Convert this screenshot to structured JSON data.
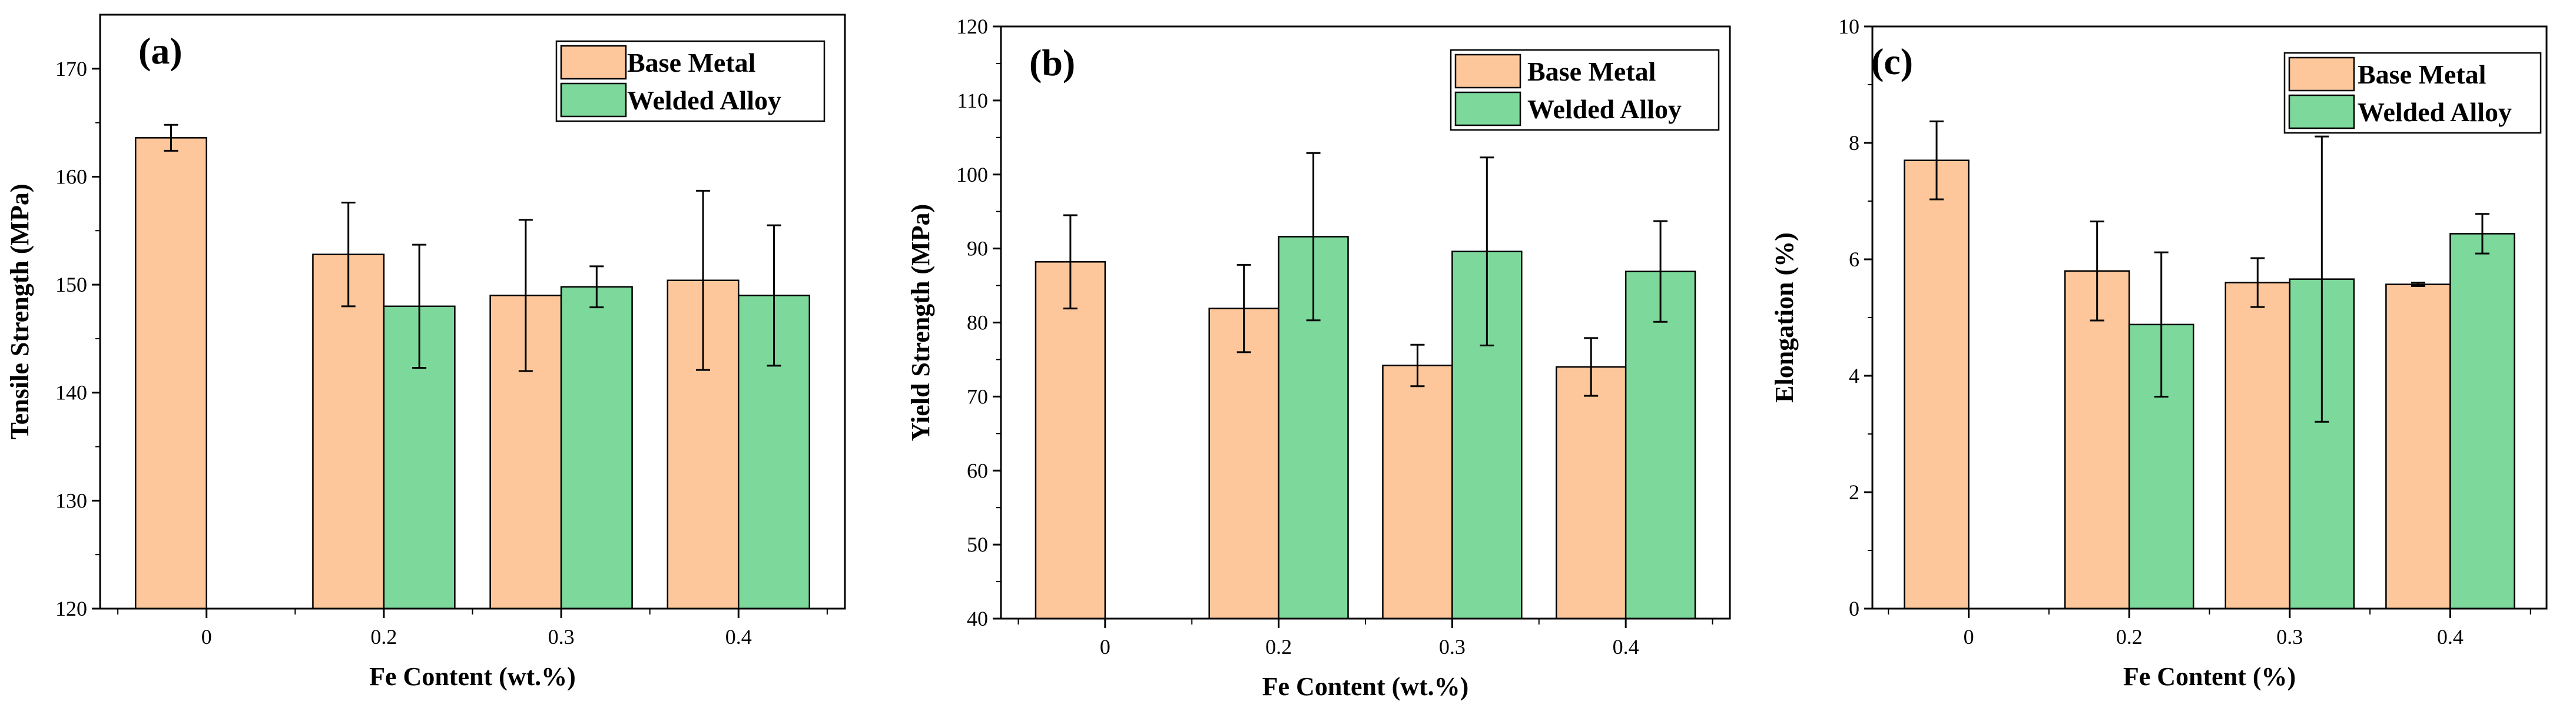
{
  "colors": {
    "base_metal": "#FDC79B",
    "welded_alloy": "#7DD99B",
    "axis": "#000000"
  },
  "legend": {
    "base_metal": "Base Metal",
    "welded_alloy": "Welded Alloy"
  },
  "chart_data": [
    {
      "type": "bar",
      "panel": "(a)",
      "xlabel": "Fe Content (wt.%)",
      "ylabel": "Tensile Strength (MPa)",
      "categories": [
        "0",
        "0.2",
        "0.3",
        "0.4"
      ],
      "ylim": [
        120,
        175
      ],
      "yticks": [
        120,
        130,
        140,
        150,
        160,
        170
      ],
      "legend_position": "top-right",
      "series": [
        {
          "name": "Base Metal",
          "key": "base_metal",
          "values": [
            163.6,
            152.8,
            149.0,
            150.4
          ],
          "errors": [
            1.2,
            4.8,
            7.0,
            8.3
          ]
        },
        {
          "name": "Welded Alloy",
          "key": "welded_alloy",
          "values": [
            null,
            148.0,
            149.8,
            149.0
          ],
          "errors": [
            null,
            5.7,
            1.9,
            6.5
          ]
        }
      ]
    },
    {
      "type": "bar",
      "panel": "(b)",
      "xlabel": "Fe Content (wt.%)",
      "ylabel": "Yield Strength (MPa)",
      "categories": [
        "0",
        "0.2",
        "0.3",
        "0.4"
      ],
      "ylim": [
        40,
        120
      ],
      "yticks": [
        40,
        50,
        60,
        70,
        80,
        90,
        100,
        110,
        120
      ],
      "legend_position": "top-right",
      "series": [
        {
          "name": "Base Metal",
          "key": "base_metal",
          "values": [
            88.2,
            81.9,
            74.2,
            74.0
          ],
          "errors": [
            6.3,
            5.9,
            2.8,
            3.9
          ]
        },
        {
          "name": "Welded Alloy",
          "key": "welded_alloy",
          "values": [
            null,
            91.6,
            89.6,
            86.9
          ],
          "errors": [
            null,
            11.3,
            12.7,
            6.8
          ]
        }
      ]
    },
    {
      "type": "bar",
      "panel": "(c)",
      "xlabel": "Fe Content (%)",
      "ylabel": "Elongation (%)",
      "categories": [
        "0",
        "0.2",
        "0.3",
        "0.4"
      ],
      "ylim": [
        0,
        10
      ],
      "yticks": [
        0,
        2,
        4,
        6,
        8,
        10
      ],
      "legend_position": "top-right",
      "series": [
        {
          "name": "Base Metal",
          "key": "base_metal",
          "values": [
            7.7,
            5.8,
            5.6,
            5.57
          ],
          "errors": [
            0.67,
            0.85,
            0.42,
            0.03
          ]
        },
        {
          "name": "Welded Alloy",
          "key": "welded_alloy",
          "values": [
            null,
            4.88,
            5.66,
            6.44
          ],
          "errors": [
            null,
            1.24,
            2.45,
            0.34
          ]
        }
      ]
    }
  ]
}
